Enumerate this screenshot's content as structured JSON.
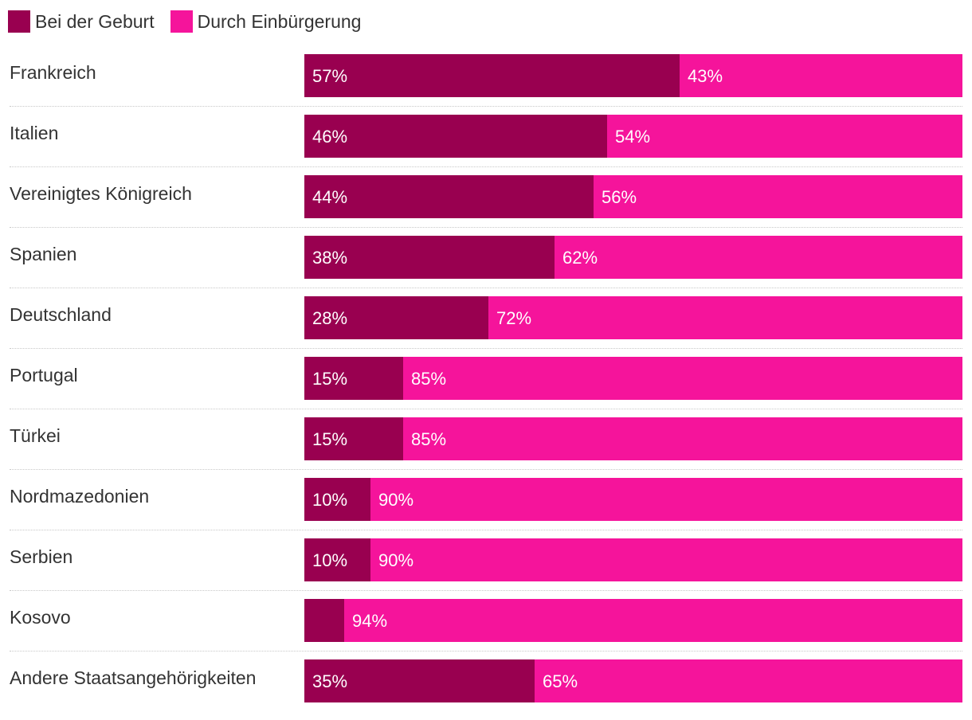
{
  "chart_data": {
    "type": "bar",
    "orientation": "horizontal",
    "stacked": true,
    "normalized": true,
    "categories": [
      "Frankreich",
      "Italien",
      "Vereinigtes Königreich",
      "Spanien",
      "Deutschland",
      "Portugal",
      "Türkei",
      "Nordmazedonien",
      "Serbien",
      "Kosovo",
      "Andere Staatsangehörigkeiten"
    ],
    "series": [
      {
        "name": "Bei der Geburt",
        "color": "#990050",
        "values": [
          57,
          46,
          44,
          38,
          28,
          15,
          15,
          10,
          10,
          6,
          35
        ],
        "labels": [
          "57%",
          "46%",
          "44%",
          "38%",
          "28%",
          "15%",
          "15%",
          "10%",
          "10%",
          "",
          "35%"
        ]
      },
      {
        "name": "Durch Einbürgerung",
        "color": "#f5149b",
        "values": [
          43,
          54,
          56,
          62,
          72,
          85,
          85,
          90,
          90,
          94,
          65
        ],
        "labels": [
          "43%",
          "54%",
          "56%",
          "62%",
          "72%",
          "85%",
          "85%",
          "90%",
          "90%",
          "94%",
          "65%"
        ]
      }
    ],
    "xlim": [
      0,
      100
    ],
    "legend": "top-left",
    "grid": false
  }
}
